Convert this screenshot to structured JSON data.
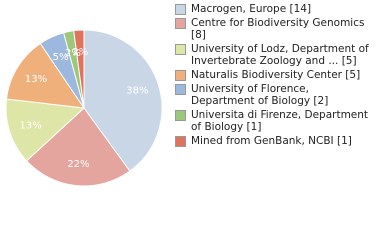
{
  "chart_data": {
    "type": "pie",
    "categories": [
      "Macrogen, Europe [14]",
      "Centre for Biodiversity Genomics [8]",
      "University of Lodz, Department of Invertebrate Zoology and ... [5]",
      "Naturalis Biodiversity Center [5]",
      "University of Florence, Department of Biology [2]",
      "Universita di Firenze, Department of Biology [1]",
      "Mined from GenBank, NCBI [1]"
    ],
    "values": [
      38,
      22,
      13,
      13,
      5,
      2,
      2
    ],
    "value_labels": [
      "38%",
      "22%",
      "13%",
      "13%",
      "5%",
      "2%",
      "2%"
    ],
    "colors": [
      "#c9d6e6",
      "#e3a59e",
      "#dde6a6",
      "#f0b07b",
      "#9db8de",
      "#9dc77a",
      "#e0735e"
    ],
    "legend": "right"
  }
}
